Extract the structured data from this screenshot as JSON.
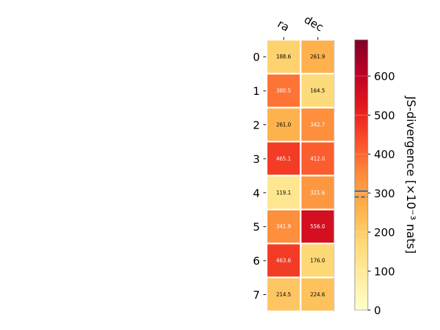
{
  "chart_data": {
    "type": "heatmap",
    "columns": [
      "ra",
      "dec"
    ],
    "rows": [
      "0",
      "1",
      "2",
      "3",
      "4",
      "5",
      "6",
      "7"
    ],
    "values": [
      [
        188.6,
        261.9
      ],
      [
        380.5,
        164.5
      ],
      [
        261.0,
        342.7
      ],
      [
        465.1,
        412.0
      ],
      [
        119.1,
        321.6
      ],
      [
        341.9,
        556.0
      ],
      [
        463.6,
        176.0
      ],
      [
        214.5,
        224.6
      ]
    ],
    "cell_labels": [
      [
        "188.6",
        "261.9"
      ],
      [
        "380.5",
        "164.5"
      ],
      [
        "261.0",
        "342.7"
      ],
      [
        "465.1",
        "412.0"
      ],
      [
        "119.1",
        "321.6"
      ],
      [
        "341.9",
        "556.0"
      ],
      [
        "463.6",
        "176.0"
      ],
      [
        "214.5",
        "224.6"
      ]
    ],
    "colormap": "YlOrRd",
    "colorbar": {
      "label": "JS-divergence [×10⁻³ nats]",
      "range": [
        0,
        693
      ],
      "ticks": [
        0,
        100,
        200,
        300,
        400,
        500,
        600
      ],
      "tick_labels": [
        "0",
        "100",
        "200",
        "300",
        "400",
        "500",
        "600"
      ],
      "marker_lines": [
        {
          "value": 305,
          "style": "solid",
          "color": "#3a6e9e"
        },
        {
          "value": 290,
          "style": "dashed",
          "color": "#3a6e9e"
        }
      ]
    }
  }
}
